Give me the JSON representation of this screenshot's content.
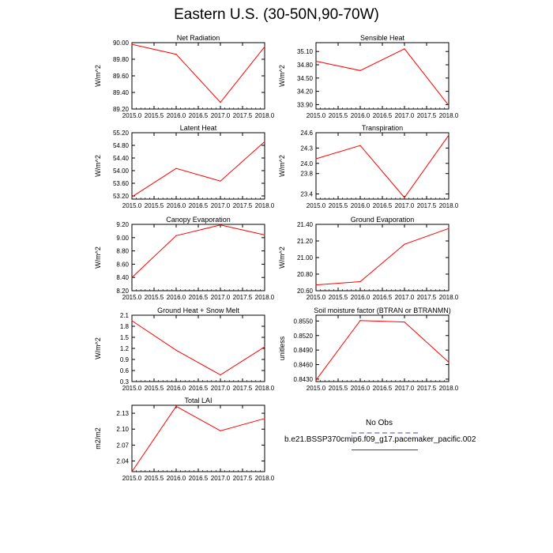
{
  "title": "Eastern U.S. (30-50N,90-70W)",
  "colors": {
    "model_line": "#ff0000",
    "obs_line": "#a6a2d8",
    "axis": "#000000"
  },
  "legend": {
    "obs_label": "No Obs",
    "model_label": "b.e21.BSSP370cmip6.f09_g17.pacemaker_pacific.002"
  },
  "chart_data": [
    {
      "type": "line",
      "title": "Net Radiation",
      "ylabel": "W/m^2",
      "x": [
        2015.0,
        2016.0,
        2017.0,
        2018.0
      ],
      "values": [
        89.98,
        89.86,
        89.28,
        89.95
      ],
      "xlim": [
        2015.0,
        2018.0
      ],
      "ylim": [
        89.2,
        90.0
      ],
      "xticks": [
        "2015.0",
        "2015.5",
        "2016.0",
        "2016.5",
        "2017.0",
        "2017.5",
        "2018.0"
      ],
      "yticks": [
        "89.20",
        "89.40",
        "89.60",
        "89.80",
        "90.00"
      ]
    },
    {
      "type": "line",
      "title": "Sensible Heat",
      "ylabel": "W/m^2",
      "x": [
        2015.0,
        2016.0,
        2017.0,
        2018.0
      ],
      "values": [
        34.88,
        34.67,
        35.16,
        33.88
      ],
      "xlim": [
        2015.0,
        2018.0
      ],
      "ylim": [
        33.8,
        35.3
      ],
      "xticks": [
        "2015.0",
        "2015.5",
        "2016.0",
        "2016.5",
        "2017.0",
        "2017.5",
        "2018.0"
      ],
      "yticks": [
        "33.90",
        "34.20",
        "34.50",
        "34.80",
        "35.10"
      ]
    },
    {
      "type": "line",
      "title": "Latent Heat",
      "ylabel": "W/m^2",
      "x": [
        2015.0,
        2016.0,
        2017.0,
        2018.0
      ],
      "values": [
        53.17,
        54.07,
        53.67,
        54.92
      ],
      "xlim": [
        2015.0,
        2018.0
      ],
      "ylim": [
        53.1,
        55.2
      ],
      "xticks": [
        "2015.0",
        "2015.5",
        "2016.0",
        "2016.5",
        "2017.0",
        "2017.5",
        "2018.0"
      ],
      "yticks": [
        "53.20",
        "53.60",
        "54.00",
        "54.40",
        "54.80",
        "55.20"
      ]
    },
    {
      "type": "line",
      "title": "Transpiration",
      "ylabel": "W/m^2",
      "x": [
        2015.0,
        2016.0,
        2017.0,
        2018.0
      ],
      "values": [
        24.09,
        24.35,
        23.33,
        24.55
      ],
      "xlim": [
        2015.0,
        2018.0
      ],
      "ylim": [
        23.3,
        24.6
      ],
      "xticks": [
        "2015.0",
        "2015.5",
        "2016.0",
        "2016.5",
        "2017.0",
        "2017.5",
        "2018.0"
      ],
      "yticks": [
        "23.4",
        "23.8",
        "24.0",
        "24.3",
        "24.6"
      ]
    },
    {
      "type": "line",
      "title": "Canopy Evaporation",
      "ylabel": "W/m^2",
      "x": [
        2015.0,
        2016.0,
        2017.0,
        2018.0
      ],
      "values": [
        8.4,
        9.03,
        9.19,
        9.04
      ],
      "xlim": [
        2015.0,
        2018.0
      ],
      "ylim": [
        8.2,
        9.2
      ],
      "xticks": [
        "2015.0",
        "2015.5",
        "2016.0",
        "2016.5",
        "2017.0",
        "2017.5",
        "2018.0"
      ],
      "yticks": [
        "8.20",
        "8.40",
        "8.60",
        "8.80",
        "9.00",
        "9.20"
      ]
    },
    {
      "type": "line",
      "title": "Ground Evaporation",
      "ylabel": "W/m^2",
      "x": [
        2015.0,
        2016.0,
        2017.0,
        2018.0
      ],
      "values": [
        20.67,
        20.71,
        21.16,
        21.35
      ],
      "xlim": [
        2015.0,
        2018.0
      ],
      "ylim": [
        20.6,
        21.4
      ],
      "xticks": [
        "2015.0",
        "2015.5",
        "2016.0",
        "2016.5",
        "2017.0",
        "2017.5",
        "2018.0"
      ],
      "yticks": [
        "20.60",
        "20.80",
        "21.00",
        "21.20",
        "21.40"
      ]
    },
    {
      "type": "line",
      "title": "Ground Heat + Snow Melt",
      "ylabel": "W/m^2",
      "x": [
        2015.0,
        2016.0,
        2017.0,
        2018.0
      ],
      "values": [
        1.95,
        1.15,
        0.48,
        1.24
      ],
      "xlim": [
        2015.0,
        2018.0
      ],
      "ylim": [
        0.3,
        2.1
      ],
      "xticks": [
        "2015.0",
        "2015.5",
        "2016.0",
        "2016.5",
        "2017.0",
        "2017.5",
        "2018.0"
      ],
      "yticks": [
        "0.3",
        "0.6",
        "0.9",
        "1.2",
        "1.5",
        "1.8",
        "2.1"
      ]
    },
    {
      "type": "line",
      "title": "Soil moisture factor (BTRAN or BTRANMN)",
      "ylabel": "unitless",
      "x": [
        2015.0,
        2016.0,
        2017.0,
        2018.0
      ],
      "values": [
        0.8428,
        0.8551,
        0.8548,
        0.8465
      ],
      "xlim": [
        2015.0,
        2018.0
      ],
      "ylim": [
        0.8425,
        0.8562
      ],
      "xticks": [
        "2015.0",
        "2015.5",
        "2016.0",
        "2016.5",
        "2017.0",
        "2017.5",
        "2018.0"
      ],
      "yticks": [
        "0.8430",
        "0.8460",
        "0.8490",
        "0.8520",
        "0.8550"
      ]
    },
    {
      "type": "line",
      "title": "Total LAI",
      "ylabel": "m2/m2",
      "x": [
        2015.0,
        2016.0,
        2017.0,
        2018.0
      ],
      "values": [
        2.02,
        2.143,
        2.097,
        2.12
      ],
      "xlim": [
        2015.0,
        2018.0
      ],
      "ylim": [
        2.02,
        2.145
      ],
      "xticks": [
        "2015.0",
        "2015.5",
        "2016.0",
        "2016.5",
        "2017.0",
        "2017.5",
        "2018.0"
      ],
      "yticks": [
        "2.04",
        "2.07",
        "2.10",
        "2.13"
      ]
    }
  ]
}
